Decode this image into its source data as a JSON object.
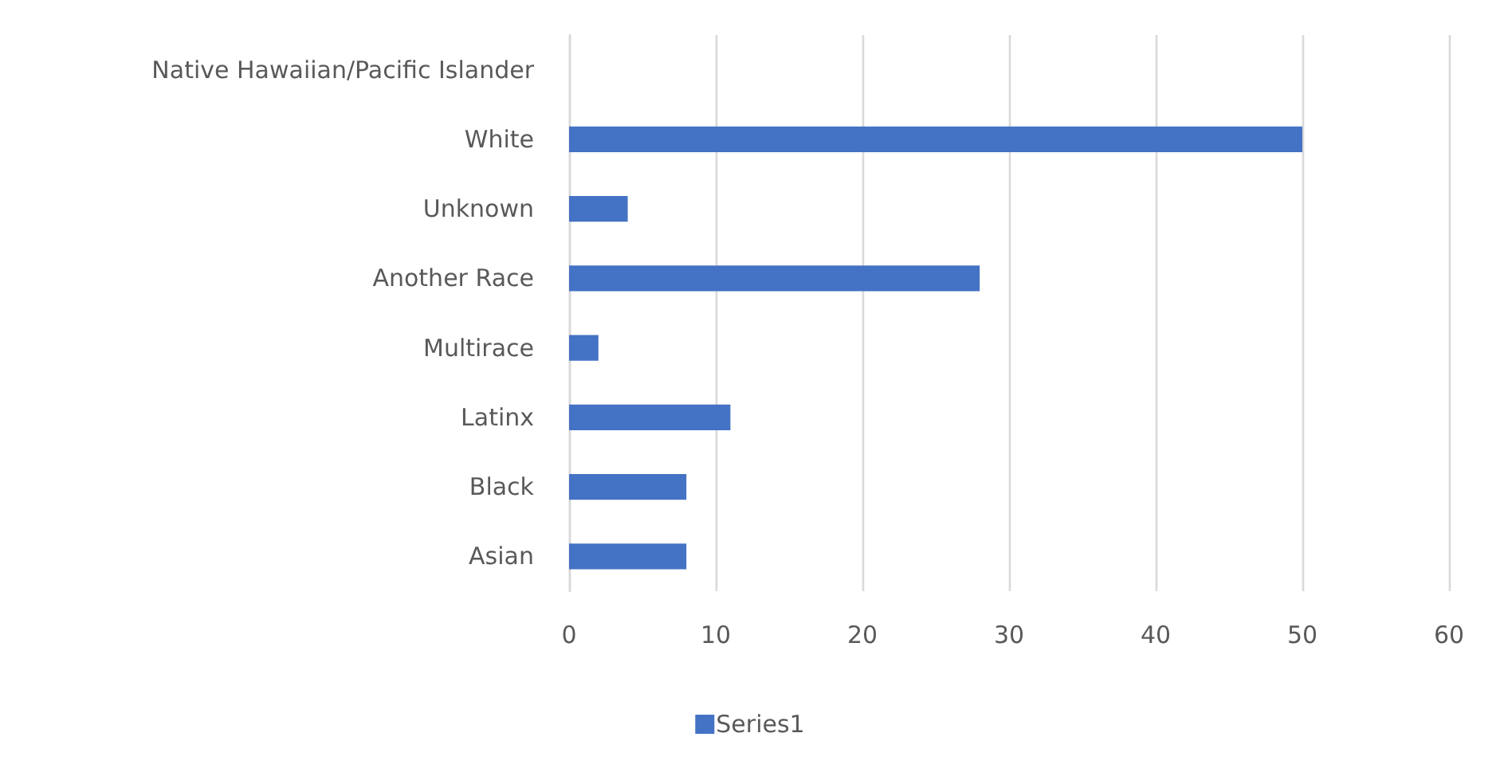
{
  "chart_data": {
    "type": "bar",
    "orientation": "horizontal",
    "categories": [
      "Native Hawaiian/Pacific Islander",
      "White",
      "Unknown",
      "Another Race",
      "Multirace",
      "Latinx",
      "Black",
      "Asian"
    ],
    "series": [
      {
        "name": "Series1",
        "color": "#4472c4",
        "values": [
          0,
          50,
          4,
          28,
          2,
          11,
          8,
          8
        ]
      }
    ],
    "xlim": [
      0,
      60
    ],
    "xticks": [
      0,
      10,
      20,
      30,
      40,
      50,
      60
    ],
    "grid": "x",
    "legend": "bottom"
  }
}
